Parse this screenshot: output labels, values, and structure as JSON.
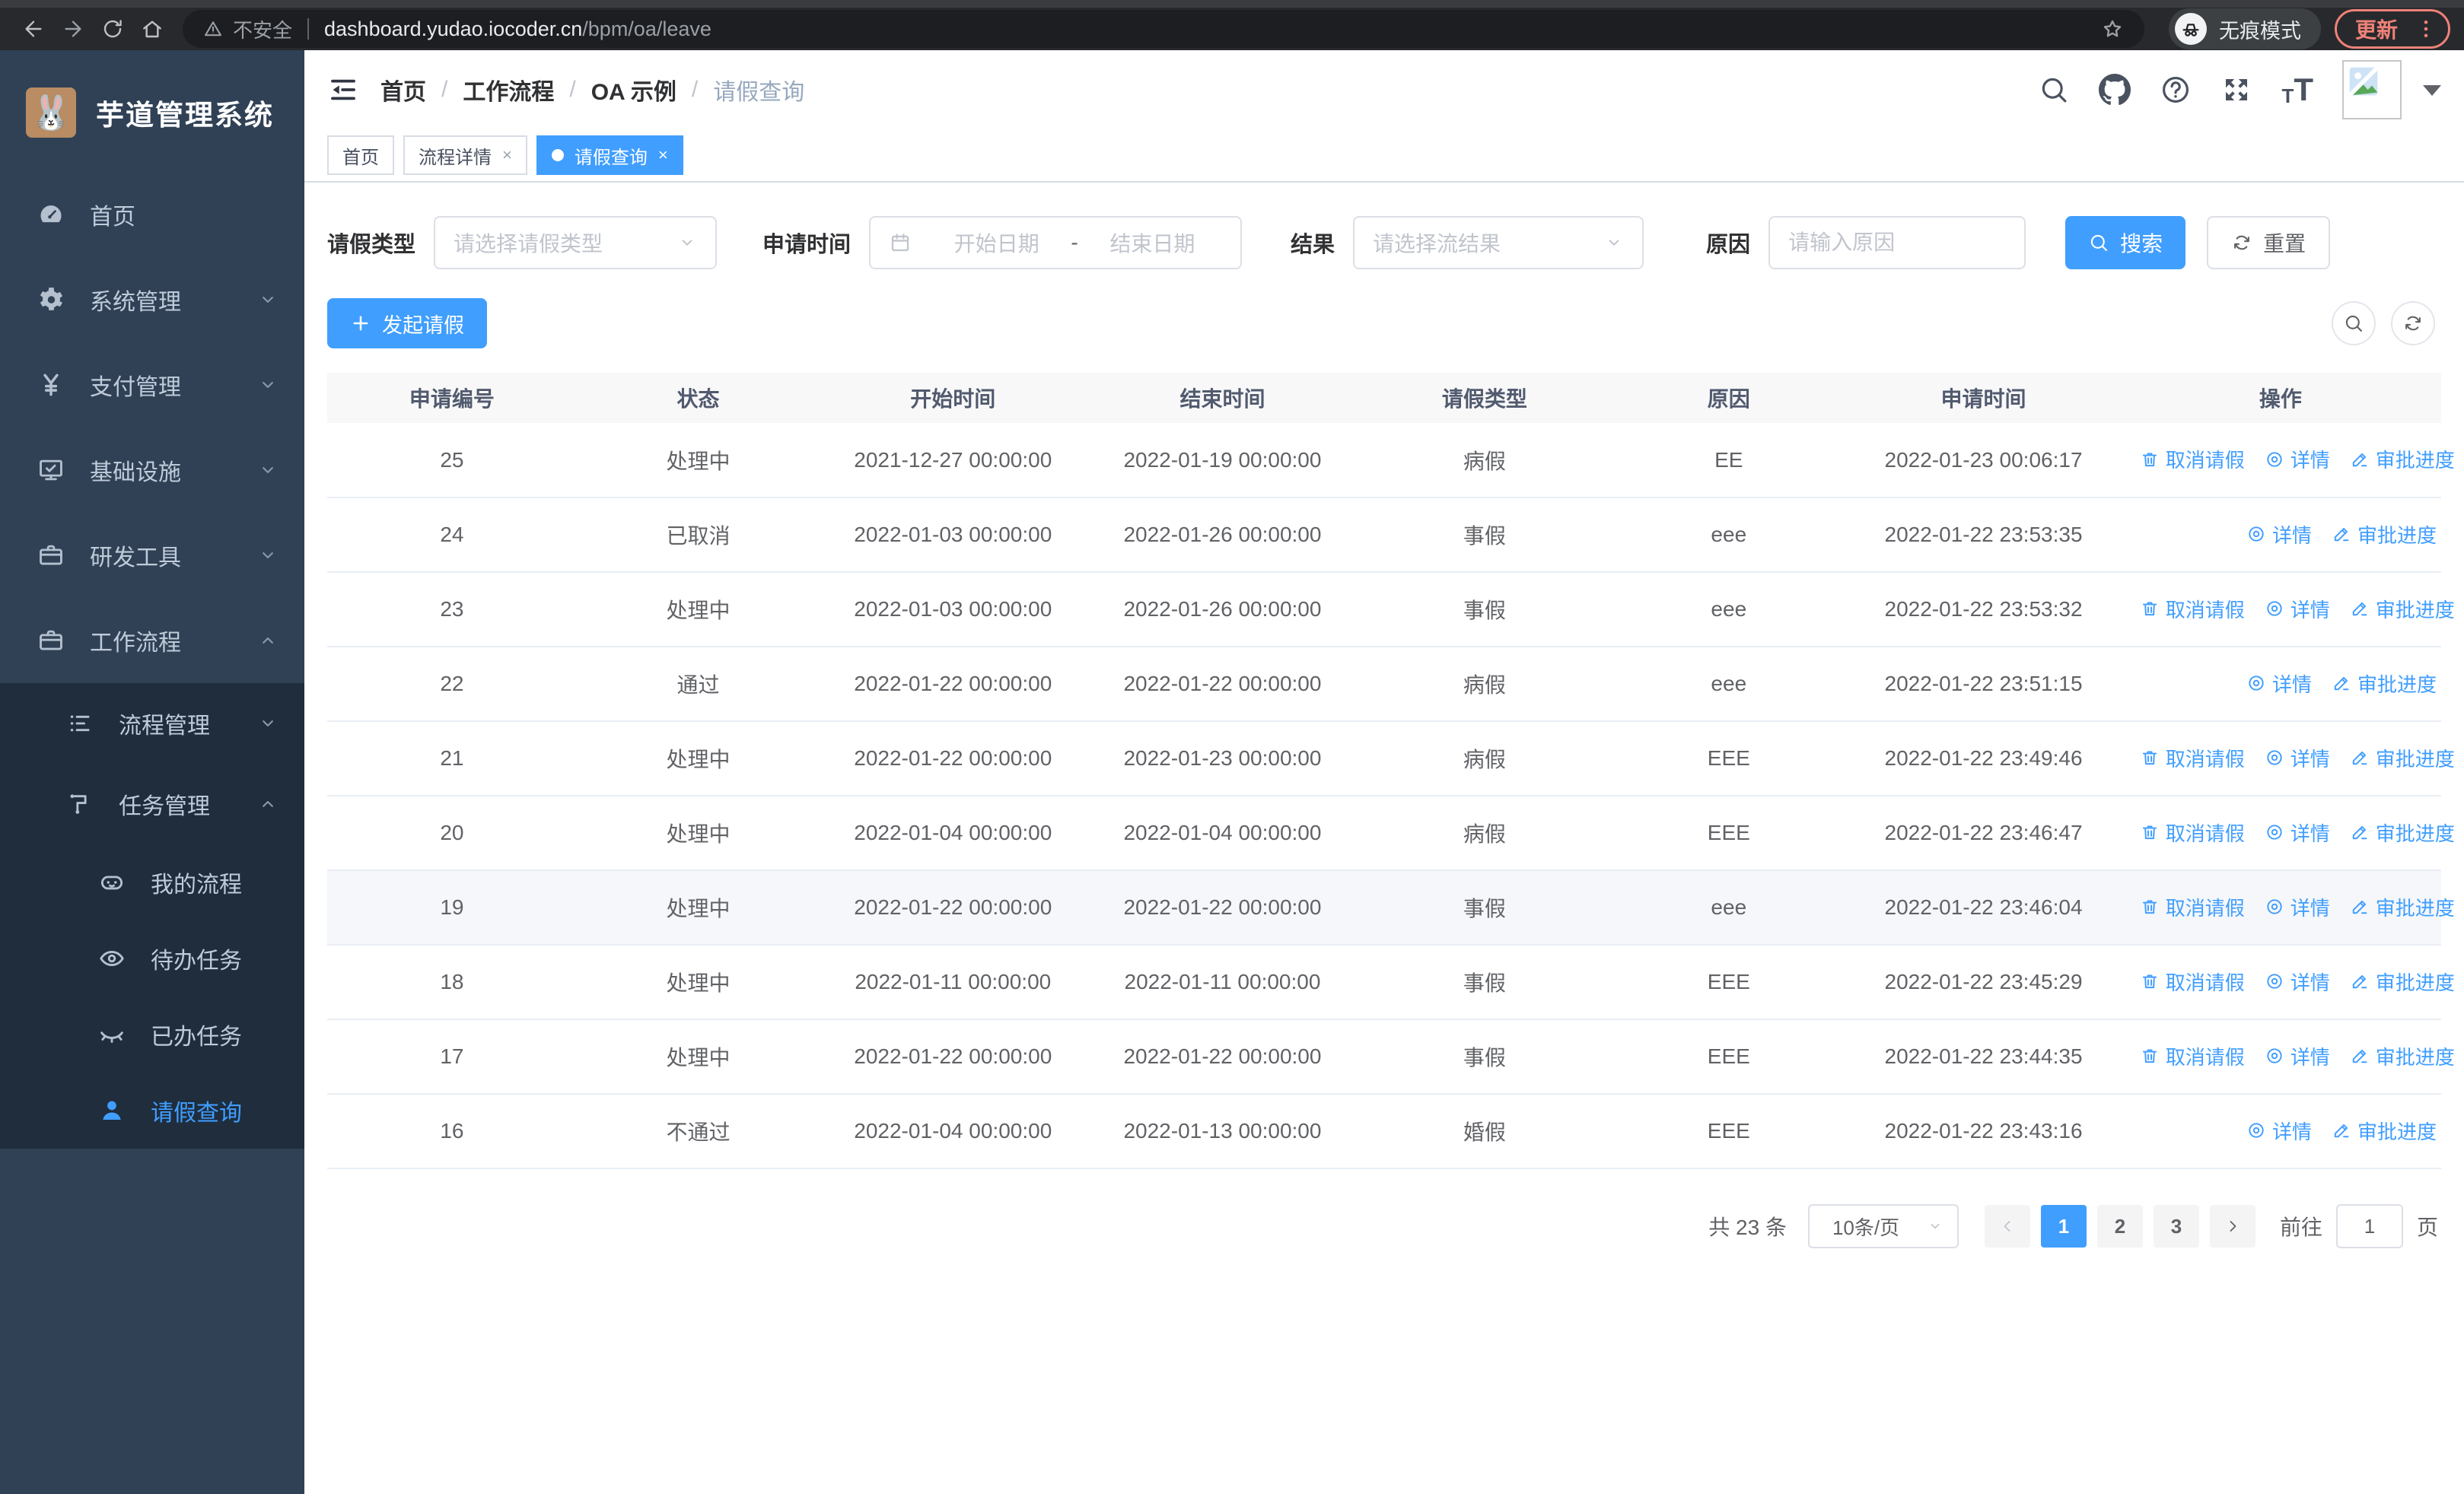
{
  "browser": {
    "security_label": "不安全",
    "url_host": "dashboard.yudao.iocoder.cn",
    "url_path": "/bpm/oa/leave",
    "incognito_label": "无痕模式",
    "update_label": "更新"
  },
  "sidebar": {
    "title": "芋道管理系统",
    "menu": [
      {
        "key": "home",
        "label": "首页",
        "icon": "dashboard-icon",
        "level": 1,
        "arrow": "",
        "in_sub": false,
        "active": false
      },
      {
        "key": "system",
        "label": "系统管理",
        "icon": "gear-icon",
        "level": 1,
        "arrow": "down",
        "in_sub": false,
        "active": false
      },
      {
        "key": "payment",
        "label": "支付管理",
        "icon": "yen-icon",
        "level": 1,
        "arrow": "down",
        "in_sub": false,
        "active": false
      },
      {
        "key": "infra",
        "label": "基础设施",
        "icon": "monitor-icon",
        "level": 1,
        "arrow": "down",
        "in_sub": false,
        "active": false
      },
      {
        "key": "devtools",
        "label": "研发工具",
        "icon": "briefcase-icon",
        "level": 1,
        "arrow": "down",
        "in_sub": false,
        "active": false
      },
      {
        "key": "workflow",
        "label": "工作流程",
        "icon": "briefcase-icon",
        "level": 1,
        "arrow": "up",
        "in_sub": false,
        "active": false
      },
      {
        "key": "process-mgmt",
        "label": "流程管理",
        "icon": "list-icon",
        "level": 2,
        "arrow": "down",
        "in_sub": true,
        "active": false
      },
      {
        "key": "task-mgmt",
        "label": "任务管理",
        "icon": "branch-icon",
        "level": 2,
        "arrow": "up",
        "in_sub": true,
        "active": false
      },
      {
        "key": "my-process",
        "label": "我的流程",
        "icon": "robot-icon",
        "level": 3,
        "arrow": "",
        "in_sub": true,
        "active": false
      },
      {
        "key": "todo-tasks",
        "label": "待办任务",
        "icon": "eye-icon",
        "level": 3,
        "arrow": "",
        "in_sub": true,
        "active": false
      },
      {
        "key": "done-tasks",
        "label": "已办任务",
        "icon": "eye-closed-icon",
        "level": 3,
        "arrow": "",
        "in_sub": true,
        "active": false
      },
      {
        "key": "leave-query",
        "label": "请假查询",
        "icon": "user-icon",
        "level": 3,
        "arrow": "",
        "in_sub": true,
        "active": true
      }
    ]
  },
  "navbar": {
    "breadcrumb": [
      "首页",
      "工作流程",
      "OA 示例",
      "请假查询"
    ]
  },
  "tags": [
    {
      "label": "首页",
      "closable": false,
      "active": false
    },
    {
      "label": "流程详情",
      "closable": true,
      "active": false
    },
    {
      "label": "请假查询",
      "closable": true,
      "active": true
    }
  ],
  "filters": {
    "leave_type_label": "请假类型",
    "leave_type_placeholder": "请选择请假类型",
    "apply_time_label": "申请时间",
    "start_date_placeholder": "开始日期",
    "date_separator": "-",
    "end_date_placeholder": "结束日期",
    "result_label": "结果",
    "result_placeholder": "请选择流结果",
    "reason_label": "原因",
    "reason_placeholder": "请输入原因",
    "search_label": "搜索",
    "reset_label": "重置"
  },
  "toolbar": {
    "create_label": "发起请假"
  },
  "table": {
    "headers": [
      "申请编号",
      "状态",
      "开始时间",
      "结束时间",
      "请假类型",
      "原因",
      "申请时间",
      "操作"
    ],
    "action_labels": {
      "cancel": "取消请假",
      "detail": "详情",
      "progress": "审批进度"
    },
    "rows": [
      {
        "id": "25",
        "status": "处理中",
        "start": "2021-12-27 00:00:00",
        "end": "2022-01-19 00:00:00",
        "type": "病假",
        "reason": "EE",
        "applied": "2022-01-23 00:06:17",
        "can_cancel": true,
        "hover": false
      },
      {
        "id": "24",
        "status": "已取消",
        "start": "2022-01-03 00:00:00",
        "end": "2022-01-26 00:00:00",
        "type": "事假",
        "reason": "eee",
        "applied": "2022-01-22 23:53:35",
        "can_cancel": false,
        "hover": false
      },
      {
        "id": "23",
        "status": "处理中",
        "start": "2022-01-03 00:00:00",
        "end": "2022-01-26 00:00:00",
        "type": "事假",
        "reason": "eee",
        "applied": "2022-01-22 23:53:32",
        "can_cancel": true,
        "hover": false
      },
      {
        "id": "22",
        "status": "通过",
        "start": "2022-01-22 00:00:00",
        "end": "2022-01-22 00:00:00",
        "type": "病假",
        "reason": "eee",
        "applied": "2022-01-22 23:51:15",
        "can_cancel": false,
        "hover": false
      },
      {
        "id": "21",
        "status": "处理中",
        "start": "2022-01-22 00:00:00",
        "end": "2022-01-23 00:00:00",
        "type": "病假",
        "reason": "EEE",
        "applied": "2022-01-22 23:49:46",
        "can_cancel": true,
        "hover": false
      },
      {
        "id": "20",
        "status": "处理中",
        "start": "2022-01-04 00:00:00",
        "end": "2022-01-04 00:00:00",
        "type": "病假",
        "reason": "EEE",
        "applied": "2022-01-22 23:46:47",
        "can_cancel": true,
        "hover": false
      },
      {
        "id": "19",
        "status": "处理中",
        "start": "2022-01-22 00:00:00",
        "end": "2022-01-22 00:00:00",
        "type": "事假",
        "reason": "eee",
        "applied": "2022-01-22 23:46:04",
        "can_cancel": true,
        "hover": true
      },
      {
        "id": "18",
        "status": "处理中",
        "start": "2022-01-11 00:00:00",
        "end": "2022-01-11 00:00:00",
        "type": "事假",
        "reason": "EEE",
        "applied": "2022-01-22 23:45:29",
        "can_cancel": true,
        "hover": false
      },
      {
        "id": "17",
        "status": "处理中",
        "start": "2022-01-22 00:00:00",
        "end": "2022-01-22 00:00:00",
        "type": "事假",
        "reason": "EEE",
        "applied": "2022-01-22 23:44:35",
        "can_cancel": true,
        "hover": false
      },
      {
        "id": "16",
        "status": "不通过",
        "start": "2022-01-04 00:00:00",
        "end": "2022-01-13 00:00:00",
        "type": "婚假",
        "reason": "EEE",
        "applied": "2022-01-22 23:43:16",
        "can_cancel": false,
        "hover": false
      }
    ]
  },
  "pagination": {
    "total_label": "共 23 条",
    "page_size": "10条/页",
    "pages": [
      "1",
      "2",
      "3"
    ],
    "active_page": "1",
    "goto_label": "前往",
    "goto_value": "1",
    "goto_suffix": "页"
  },
  "colors": {
    "primary": "#409eff",
    "sidebar_bg": "#304156",
    "submenu_bg": "#1f2d3d",
    "update_accent": "#ee8277"
  }
}
